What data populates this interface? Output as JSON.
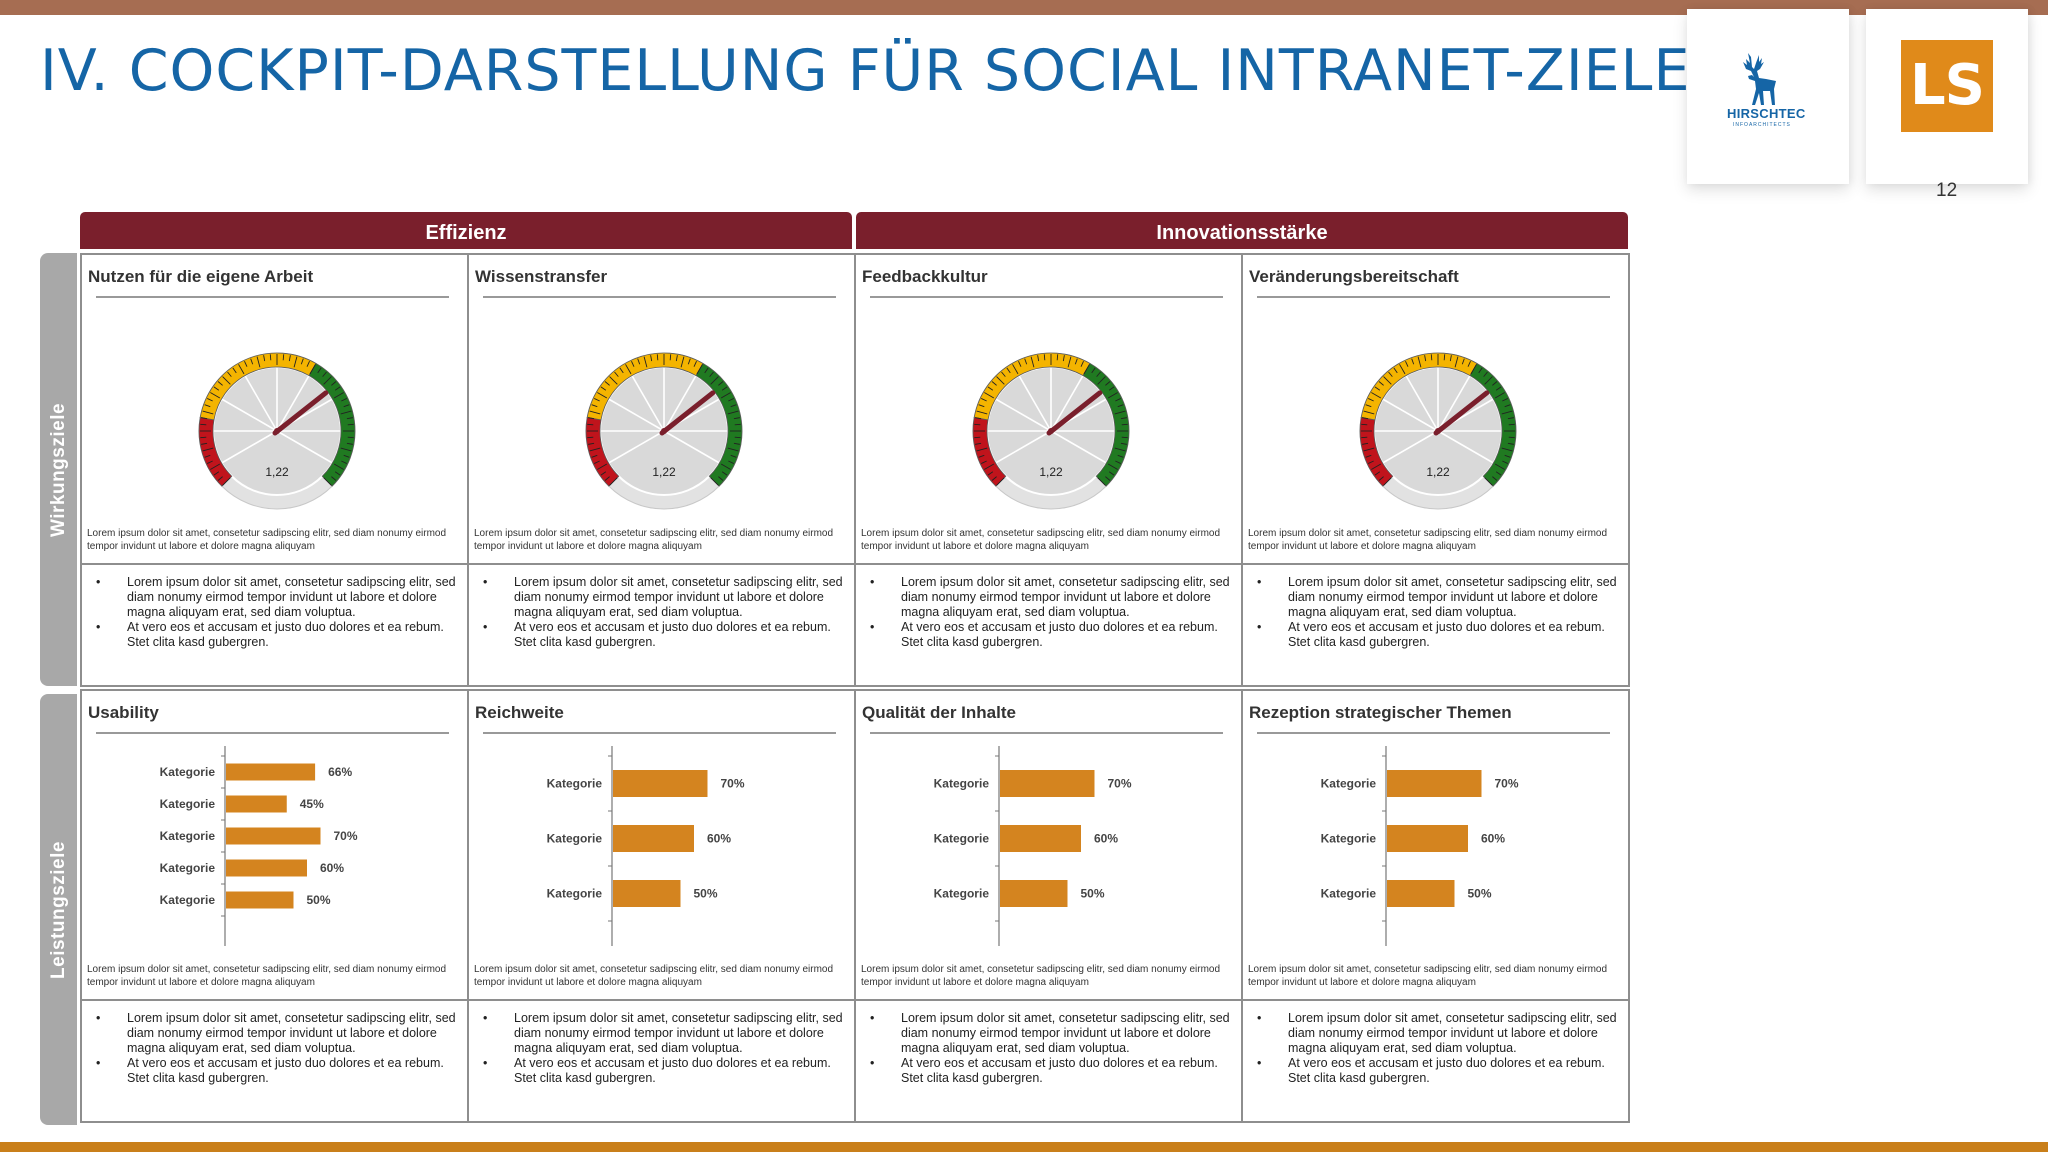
{
  "title": "IV. COCKPIT-DARSTELLUNG FÜR SOCIAL INTRANET-ZIELE I",
  "page_number": "12",
  "logos": {
    "hirschtec": {
      "name": "HIRSCHTEC",
      "tagline": "INFOARCHITECTS",
      "icon": "deer-icon"
    },
    "ls": {
      "text": "LS"
    }
  },
  "column_headers": [
    "Effizienz",
    "Innovationsstärke"
  ],
  "row_labels": [
    "Wirkungsziele",
    "Leistungsziele"
  ],
  "colors": {
    "accent_blue": "#1565a6",
    "header_maroon": "#7a1f2c",
    "bar_orange": "#d4841f",
    "gauge_red": "#c0141c",
    "gauge_yellow": "#f4b400",
    "gauge_green": "#207a21"
  },
  "gauges": [
    {
      "title": "Nutzen für die eigene Arbeit",
      "value_label": "1,22",
      "description": "Lorem ipsum dolor sit amet, consetetur sadipscing elitr, sed diam nonumy eirmod tempor invidunt ut labore et dolore magna aliquyam"
    },
    {
      "title": "Wissenstransfer",
      "value_label": "1,22",
      "description": "Lorem ipsum dolor sit amet, consetetur sadipscing elitr, sed diam nonumy eirmod tempor invidunt ut labore et dolore magna aliquyam"
    },
    {
      "title": "Feedbackkultur",
      "value_label": "1,22",
      "description": "Lorem ipsum dolor sit amet, consetetur sadipscing elitr, sed diam nonumy eirmod tempor invidunt ut labore et dolore magna aliquyam"
    },
    {
      "title": "Veränderungsbereitschaft",
      "value_label": "1,22",
      "description": "Lorem ipsum dolor sit amet, consetetur sadipscing elitr, sed diam nonumy eirmod tempor invidunt ut labore et dolore magna aliquyam"
    }
  ],
  "bullets": [
    "Lorem ipsum dolor sit amet, consetetur sadipscing elitr, sed diam nonumy eirmod tempor invidunt ut labore et dolore magna aliquyam erat, sed diam voluptua.",
    "At vero eos et accusam et justo duo dolores et ea rebum. Stet clita kasd gubergren."
  ],
  "bar_description": "Lorem ipsum dolor sit amet, consetetur sadipscing elitr, sed diam nonumy eirmod tempor invidunt ut labore et dolore magna aliquyam",
  "chart_data": [
    {
      "type": "bar",
      "orientation": "horizontal",
      "title": "Usability",
      "categories": [
        "Kategorie",
        "Kategorie",
        "Kategorie",
        "Kategorie",
        "Kategorie"
      ],
      "values": [
        66,
        45,
        70,
        60,
        50
      ],
      "value_labels": [
        "66%",
        "45%",
        "70%",
        "60%",
        "50%"
      ],
      "xlim": [
        0,
        100
      ]
    },
    {
      "type": "bar",
      "orientation": "horizontal",
      "title": "Reichweite",
      "categories": [
        "Kategorie",
        "Kategorie",
        "Kategorie"
      ],
      "values": [
        70,
        60,
        50
      ],
      "value_labels": [
        "70%",
        "60%",
        "50%"
      ],
      "xlim": [
        0,
        100
      ]
    },
    {
      "type": "bar",
      "orientation": "horizontal",
      "title": "Qualität der Inhalte",
      "categories": [
        "Kategorie",
        "Kategorie",
        "Kategorie"
      ],
      "values": [
        70,
        60,
        50
      ],
      "value_labels": [
        "70%",
        "60%",
        "50%"
      ],
      "xlim": [
        0,
        100
      ]
    },
    {
      "type": "bar",
      "orientation": "horizontal",
      "title": "Rezeption strategischer Themen",
      "categories": [
        "Kategorie",
        "Kategorie",
        "Kategorie"
      ],
      "values": [
        70,
        60,
        50
      ],
      "value_labels": [
        "70%",
        "60%",
        "50%"
      ],
      "xlim": [
        0,
        100
      ]
    }
  ]
}
